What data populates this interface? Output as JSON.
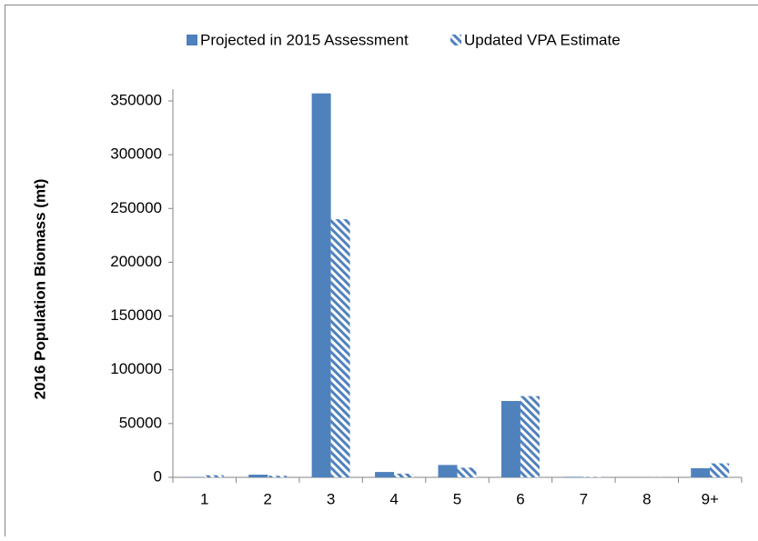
{
  "chart_data": {
    "type": "bar",
    "y_axis_label": "2016 Population Biomass (mt)",
    "categories": [
      "1",
      "2",
      "3",
      "4",
      "5",
      "6",
      "7",
      "8",
      "9+"
    ],
    "series": [
      {
        "name": "Projected in 2015 Assessment",
        "color": "#4f81bd",
        "hatch": false,
        "values": [
          300,
          2500,
          357000,
          5000,
          11500,
          71000,
          500,
          100,
          8500
        ]
      },
      {
        "name": "Updated VPA Estimate",
        "color": "#4f81bd",
        "hatch": true,
        "values": [
          2000,
          1500,
          240000,
          3500,
          9000,
          75500,
          300,
          100,
          13000
        ]
      }
    ],
    "ylim": [
      0,
      350000
    ],
    "yticks": [
      0,
      50000,
      100000,
      150000,
      200000,
      250000,
      300000,
      350000
    ],
    "grid": false,
    "legend": "top"
  }
}
